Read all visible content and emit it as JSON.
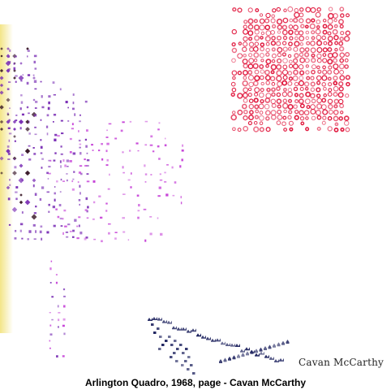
{
  "artwork": {
    "signature": "Cavan McCarthy",
    "colors": {
      "red": "#e0143a",
      "purple": "#7a2fb5",
      "magenta": "#c43ad6",
      "navy": "#1a1f5c",
      "yellow": "#f2e27a",
      "dark": "#3a1a2a"
    }
  },
  "caption": "Arlington Quadro, 1968, page - Cavan McCarthy"
}
